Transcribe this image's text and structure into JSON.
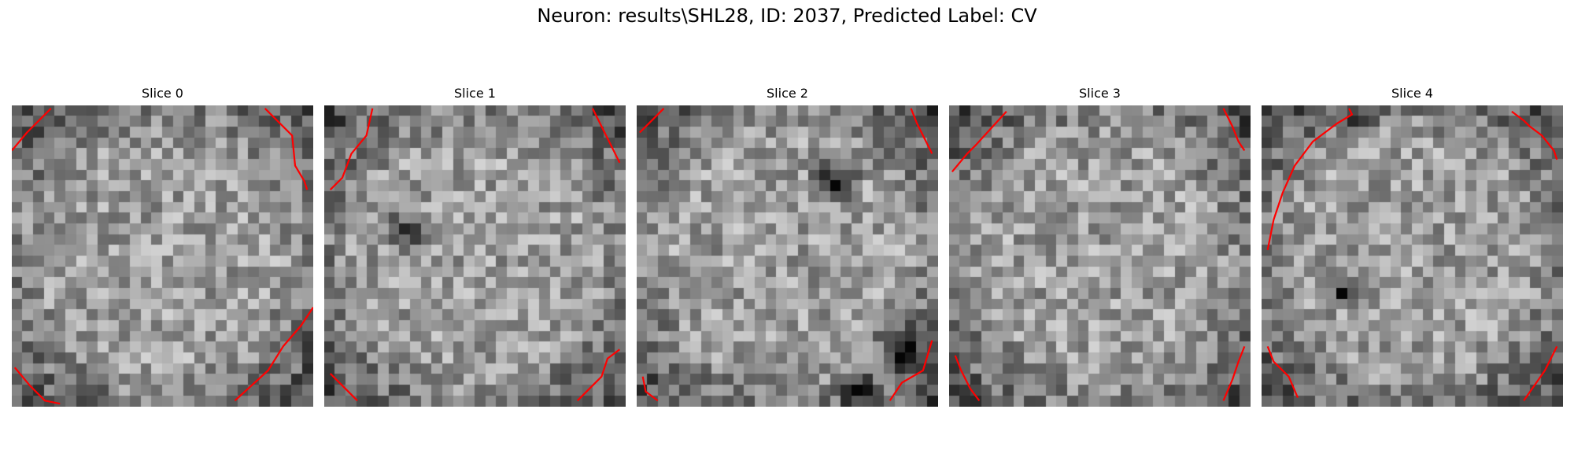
{
  "figure": {
    "title": "Neuron: results\\SHL28, ID: 2037, Predicted Label: CV",
    "contour_color": "#ff0000",
    "colormap": "grayscale"
  },
  "slices": [
    {
      "title": "Slice 0",
      "dark_spots": [],
      "contours": [
        [
          [
            0.0,
            0.15
          ],
          [
            0.05,
            0.09
          ],
          [
            0.13,
            0.01
          ]
        ],
        [
          [
            0.84,
            0.01
          ],
          [
            0.93,
            0.1
          ],
          [
            0.94,
            0.2
          ],
          [
            0.97,
            0.25
          ],
          [
            0.98,
            0.28
          ]
        ],
        [
          [
            1.0,
            0.67
          ],
          [
            0.96,
            0.73
          ],
          [
            0.9,
            0.8
          ],
          [
            0.85,
            0.88
          ],
          [
            0.74,
            0.98
          ]
        ],
        [
          [
            0.01,
            0.87
          ],
          [
            0.06,
            0.93
          ],
          [
            0.11,
            0.98
          ],
          [
            0.16,
            0.99
          ]
        ]
      ]
    },
    {
      "title": "Slice 1",
      "dark_spots": [
        [
          0.28,
          0.42,
          0.09
        ]
      ],
      "contours": [
        [
          [
            0.02,
            0.28
          ],
          [
            0.06,
            0.24
          ],
          [
            0.09,
            0.16
          ],
          [
            0.14,
            0.1
          ],
          [
            0.16,
            0.01
          ]
        ],
        [
          [
            0.89,
            0.01
          ],
          [
            0.92,
            0.07
          ],
          [
            0.96,
            0.15
          ],
          [
            0.98,
            0.19
          ]
        ],
        [
          [
            0.98,
            0.81
          ],
          [
            0.94,
            0.84
          ],
          [
            0.92,
            0.9
          ],
          [
            0.84,
            0.98
          ]
        ],
        [
          [
            0.02,
            0.89
          ],
          [
            0.06,
            0.93
          ],
          [
            0.11,
            0.98
          ]
        ]
      ]
    },
    {
      "title": "Slice 2",
      "dark_spots": [
        [
          0.67,
          0.25,
          0.1
        ],
        [
          0.88,
          0.8,
          0.1
        ],
        [
          0.75,
          0.95,
          0.08
        ]
      ],
      "contours": [
        [
          [
            0.01,
            0.09
          ],
          [
            0.05,
            0.05
          ],
          [
            0.09,
            0.01
          ]
        ],
        [
          [
            0.91,
            0.01
          ],
          [
            0.93,
            0.06
          ],
          [
            0.96,
            0.12
          ],
          [
            0.98,
            0.16
          ]
        ],
        [
          [
            0.98,
            0.78
          ],
          [
            0.95,
            0.88
          ],
          [
            0.88,
            0.92
          ],
          [
            0.84,
            0.98
          ]
        ],
        [
          [
            0.02,
            0.9
          ],
          [
            0.03,
            0.95
          ],
          [
            0.07,
            0.98
          ]
        ]
      ]
    },
    {
      "title": "Slice 3",
      "dark_spots": [],
      "contours": [
        [
          [
            0.01,
            0.22
          ],
          [
            0.06,
            0.16
          ],
          [
            0.09,
            0.13
          ],
          [
            0.19,
            0.02
          ]
        ],
        [
          [
            0.91,
            0.01
          ],
          [
            0.94,
            0.07
          ],
          [
            0.96,
            0.12
          ],
          [
            0.98,
            0.15
          ]
        ],
        [
          [
            0.98,
            0.8
          ],
          [
            0.96,
            0.85
          ],
          [
            0.94,
            0.91
          ],
          [
            0.91,
            0.98
          ]
        ],
        [
          [
            0.02,
            0.83
          ],
          [
            0.04,
            0.88
          ],
          [
            0.07,
            0.94
          ],
          [
            0.1,
            0.98
          ]
        ]
      ]
    },
    {
      "title": "Slice 4",
      "dark_spots": [
        [
          0.35,
          0.05,
          0.07
        ],
        [
          0.28,
          0.62,
          0.07
        ]
      ],
      "contours": [
        [
          [
            0.02,
            0.48
          ],
          [
            0.04,
            0.38
          ],
          [
            0.07,
            0.29
          ],
          [
            0.11,
            0.2
          ],
          [
            0.17,
            0.12
          ],
          [
            0.25,
            0.06
          ],
          [
            0.3,
            0.03
          ],
          [
            0.29,
            0.01
          ]
        ],
        [
          [
            0.83,
            0.02
          ],
          [
            0.87,
            0.05
          ],
          [
            0.89,
            0.07
          ],
          [
            0.93,
            0.1
          ],
          [
            0.97,
            0.15
          ],
          [
            0.98,
            0.18
          ]
        ],
        [
          [
            0.98,
            0.8
          ],
          [
            0.94,
            0.88
          ],
          [
            0.87,
            0.98
          ]
        ],
        [
          [
            0.02,
            0.8
          ],
          [
            0.04,
            0.85
          ],
          [
            0.09,
            0.9
          ],
          [
            0.12,
            0.97
          ]
        ]
      ]
    }
  ]
}
